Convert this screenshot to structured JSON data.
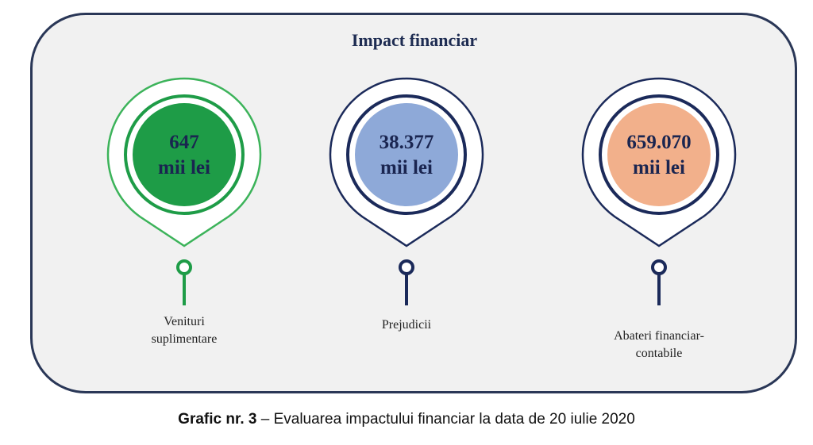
{
  "title": "Impact financiar",
  "items": [
    {
      "value": "647",
      "unit": "mii lei",
      "label_lines": [
        "Venituri",
        "suplimentare"
      ],
      "fill_color": "#1e9c47",
      "ring_color": "#1e9c47",
      "outline_color": "#3cb35a"
    },
    {
      "value": "38.377",
      "unit": "mii lei",
      "label_lines": [
        "Prejudicii"
      ],
      "fill_color": "#8ea9d8",
      "ring_color": "#1b2a5a",
      "outline_color": "#1b2a5a"
    },
    {
      "value": "659.070",
      "unit": "mii lei",
      "label_lines": [
        "Abateri financiar-",
        "contabile"
      ],
      "fill_color": "#f2b08b",
      "ring_color": "#1b2a5a",
      "outline_color": "#1b2a5a"
    }
  ],
  "caption": {
    "bold": "Grafic nr. 3",
    "rest": " – Evaluarea impactului financiar la data de 20 iulie 2020"
  }
}
